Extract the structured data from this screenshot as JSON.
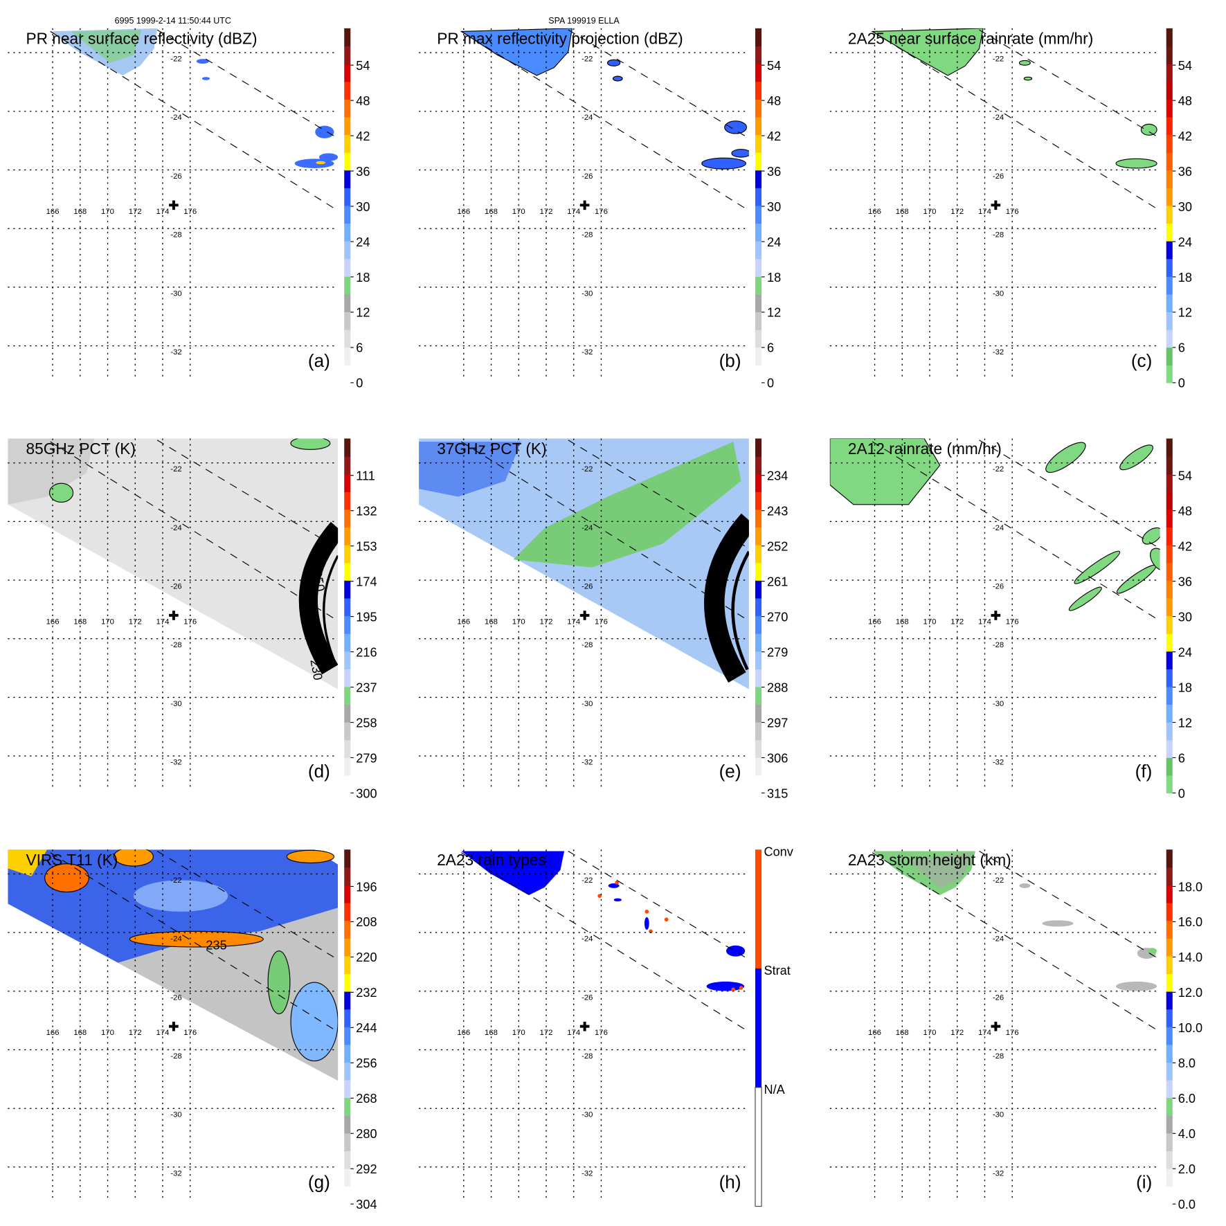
{
  "header": {
    "orbit_time": "6995 1999-2-14 11:50:44 UTC",
    "storm": "SPA 199919 ELLA"
  },
  "grid": {
    "lon_labels": [
      "166",
      "168",
      "170",
      "172",
      "174",
      "176"
    ],
    "lat_labels": [
      "-22",
      "-24",
      "-26",
      "-28",
      "-30",
      "-32"
    ]
  },
  "colors": {
    "palette_main": [
      "#ffffff",
      "#f0f0f0",
      "#dedede",
      "#c8c8c8",
      "#a8a8a8",
      "#7ed67e",
      "#c8d4ff",
      "#a0c4ff",
      "#72b0ff",
      "#4a8cff",
      "#3060ff",
      "#0000e0",
      "#ffff00",
      "#ffd000",
      "#ff9a00",
      "#ff7000",
      "#ff3000",
      "#d80000",
      "#901818",
      "#5a1410"
    ],
    "palette_rain": [
      "#80dc80",
      "#66c466",
      "#c8d4ff",
      "#a0c4ff",
      "#72b0ff",
      "#4a8cff",
      "#3060ff",
      "#0000e0",
      "#ffff00",
      "#ffd000",
      "#ff9a00",
      "#ff8000",
      "#ff6000",
      "#ff4000",
      "#ff2000",
      "#e00000",
      "#c00000",
      "#a01010",
      "#701410",
      "#5a1410"
    ],
    "rain_type": {
      "conv": "#ff4a00",
      "strat": "#0000ff",
      "na": "#ffffff"
    }
  },
  "panels": [
    {
      "id": "a",
      "title": "PR near surface reflectivity (dBZ)",
      "label": "(a)",
      "palette": "palette_main",
      "ticks": [
        "0",
        "6",
        "12",
        "18",
        "24",
        "30",
        "36",
        "42",
        "48",
        "54"
      ]
    },
    {
      "id": "b",
      "title": "PR max reflectivity projection (dBZ)",
      "label": "(b)",
      "palette": "palette_main",
      "ticks": [
        "0",
        "6",
        "12",
        "18",
        "24",
        "30",
        "36",
        "42",
        "48",
        "54"
      ]
    },
    {
      "id": "c",
      "title": "2A25 near surface rainrate (mm/hr)",
      "label": "(c)",
      "palette": "palette_rain",
      "ticks": [
        "0",
        "6",
        "12",
        "18",
        "24",
        "30",
        "36",
        "42",
        "48",
        "54"
      ]
    },
    {
      "id": "d",
      "title": "85GHz PCT (K)",
      "label": "(d)",
      "palette": "palette_main",
      "ticks": [
        "300",
        "279",
        "258",
        "237",
        "216",
        "195",
        "174",
        "153",
        "132",
        "111"
      ],
      "contour_labels": [
        "250",
        "230"
      ]
    },
    {
      "id": "e",
      "title": "37GHz PCT (K)",
      "label": "(e)",
      "palette": "palette_main",
      "ticks": [
        "315",
        "306",
        "297",
        "288",
        "279",
        "270",
        "261",
        "252",
        "243",
        "234"
      ]
    },
    {
      "id": "f",
      "title": "2A12 rainrate (mm/hr)",
      "label": "(f)",
      "palette": "palette_rain",
      "ticks": [
        "0",
        "6",
        "12",
        "18",
        "24",
        "30",
        "36",
        "42",
        "48",
        "54"
      ]
    },
    {
      "id": "g",
      "title": "VIRS T11 (K)",
      "label": "(g)",
      "palette": "palette_main",
      "ticks": [
        "304",
        "292",
        "280",
        "268",
        "256",
        "244",
        "232",
        "220",
        "208",
        "196"
      ],
      "contour_labels": [
        "235"
      ]
    },
    {
      "id": "h",
      "title": "2A23 rain types",
      "label": "(h)",
      "categories": [
        "Conv",
        "Strat",
        "N/A"
      ]
    },
    {
      "id": "i",
      "title": "2A23 storm height (km)",
      "label": "(i)",
      "palette": "palette_main",
      "ticks": [
        "0.0",
        "2.0",
        "4.0",
        "6.0",
        "8.0",
        "10.0",
        "12.0",
        "14.0",
        "16.0",
        "18.0"
      ]
    }
  ]
}
